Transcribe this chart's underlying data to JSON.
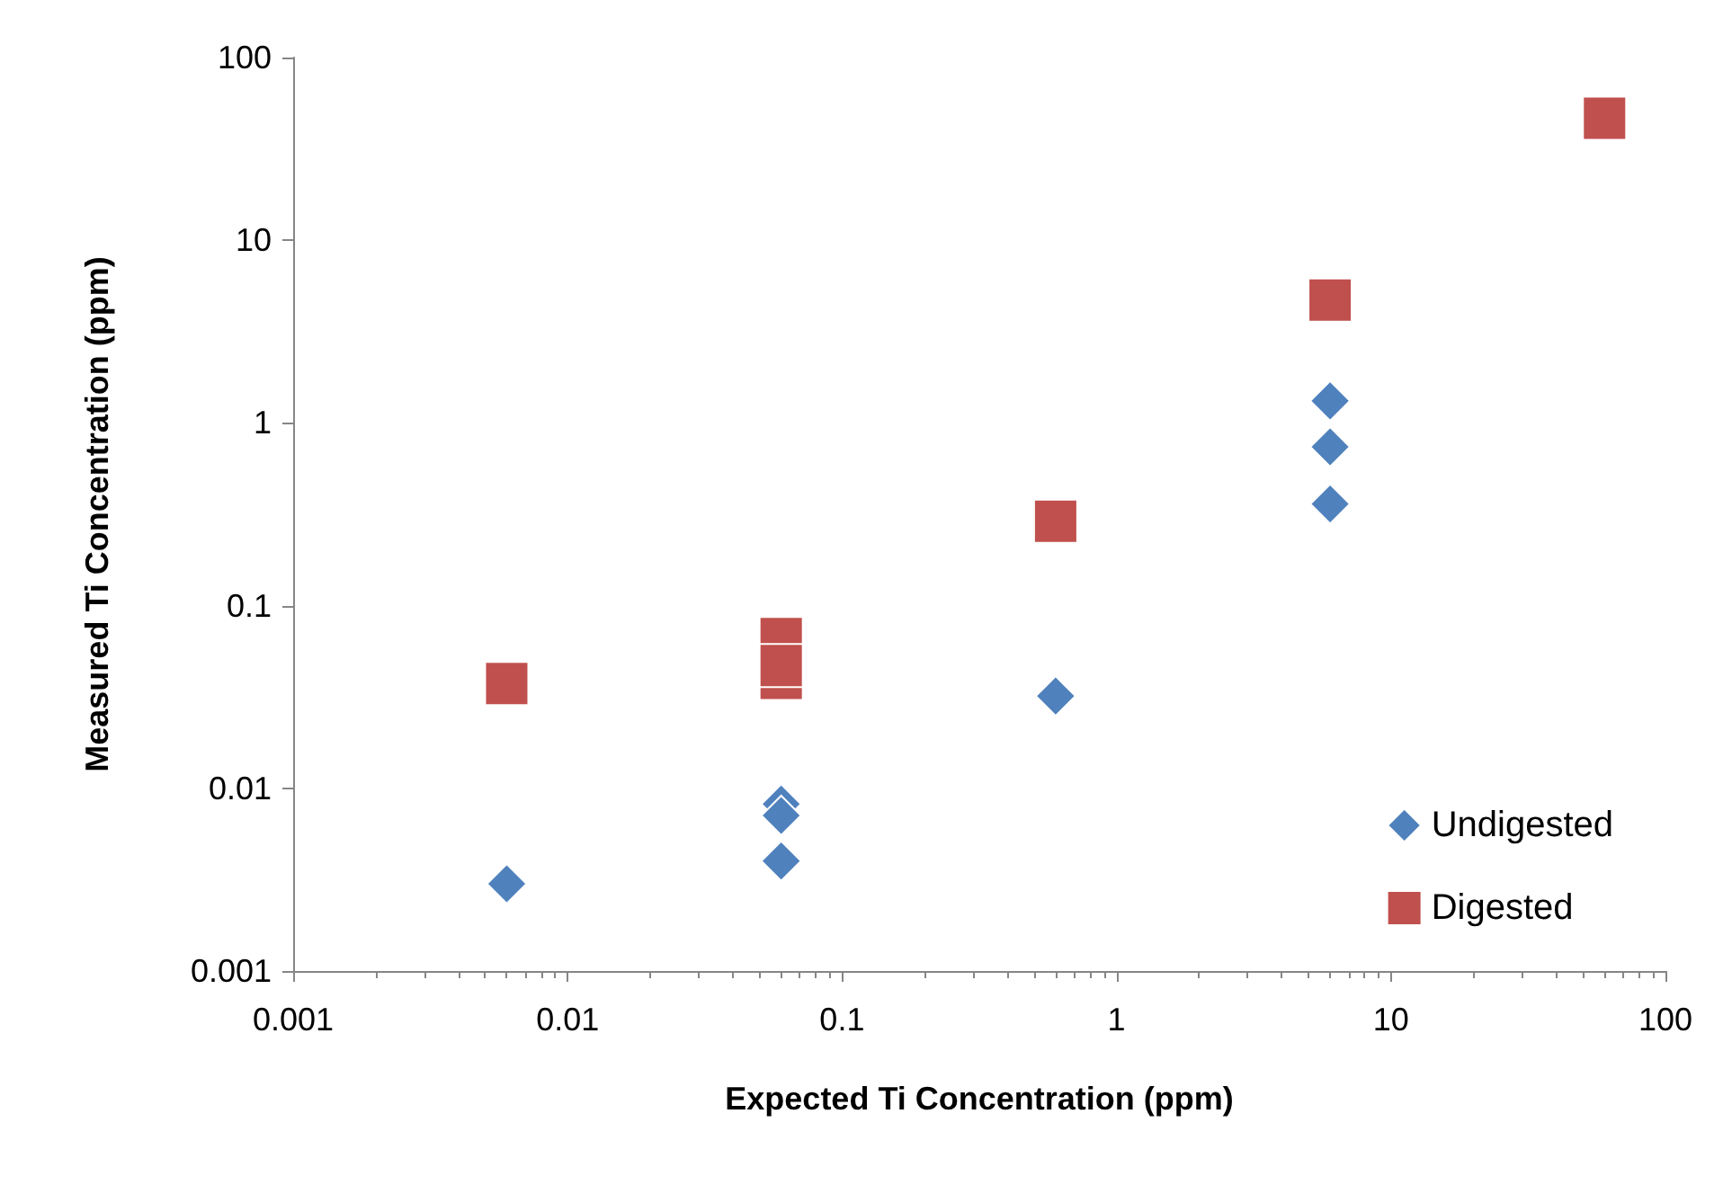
{
  "chart_data": {
    "type": "scatter",
    "xlabel": "Expected Ti Concentration (ppm)",
    "ylabel": "Measured Ti Concentration (ppm)",
    "log": "xy",
    "xlim": [
      0.001,
      100
    ],
    "ylim": [
      0.001,
      100
    ],
    "xticks": [
      0.001,
      0.01,
      0.1,
      1,
      10,
      100
    ],
    "yticks": [
      0.001,
      0.01,
      0.1,
      1,
      10,
      100
    ],
    "grid": false,
    "legend": "bottom right",
    "series": [
      {
        "name": "Undigested",
        "color": "#4f81bd",
        "marker": "diamond",
        "x": [
          0.006,
          0.06,
          0.06,
          0.06,
          0.6,
          6,
          6,
          6
        ],
        "values": [
          0.003,
          0.0082,
          0.0071,
          0.004,
          0.032,
          1.32,
          0.74,
          0.36
        ]
      },
      {
        "name": "Digested",
        "color": "#c0504d",
        "marker": "square",
        "x": [
          0.006,
          0.06,
          0.06,
          0.6,
          6,
          60,
          0.06
        ],
        "values": [
          0.0375,
          0.066,
          0.04,
          0.29,
          4.7,
          46.6,
          0.047
        ]
      }
    ]
  }
}
